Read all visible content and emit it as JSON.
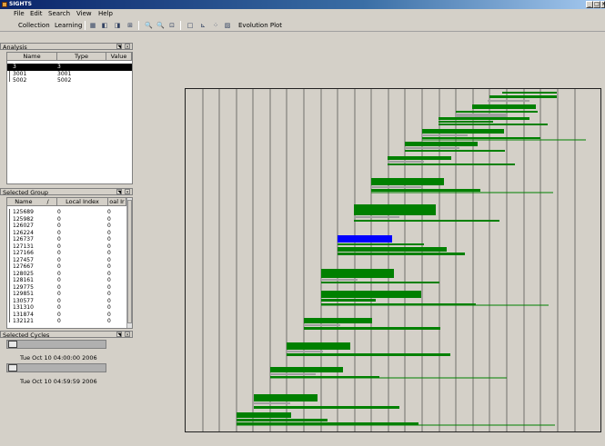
{
  "window": {
    "title": "SIGHTS",
    "minimize": "_",
    "maximize": "□",
    "close": "×"
  },
  "menu": [
    "File",
    "Edit",
    "Search",
    "View",
    "Help"
  ],
  "toolbar": {
    "collection_label": "Collection",
    "learning_label": "Learning",
    "evolution_label": "Evolution Plot",
    "icons": [
      "grid-icon",
      "left-arrow-icon",
      "right-arrow-icon",
      "tree-icon",
      "zoom-in-icon",
      "zoom-out-icon",
      "zoom-fit-icon",
      "blank-page-icon",
      "chart-icon",
      "scatter-icon",
      "evolution-plot-icon"
    ]
  },
  "analysis": {
    "header": "Analysis",
    "columns": [
      "Name",
      "Type",
      "Value"
    ],
    "rows": [
      {
        "name": "3",
        "type": "3",
        "value": "",
        "selected": true
      },
      {
        "name": "3001",
        "type": "3001",
        "value": "",
        "selected": false
      },
      {
        "name": "5002",
        "type": "5002",
        "value": "",
        "selected": false
      }
    ]
  },
  "selected_group": {
    "header": "Selected Group",
    "columns": [
      "Name",
      "/",
      "Local Index",
      "oal Ir"
    ],
    "rows": [
      {
        "name": "125689",
        "local": "0",
        "global": "0"
      },
      {
        "name": "125982",
        "local": "0",
        "global": "0"
      },
      {
        "name": "126027",
        "local": "0",
        "global": "0"
      },
      {
        "name": "126224",
        "local": "0",
        "global": "0"
      },
      {
        "name": "126737",
        "local": "0",
        "global": "0"
      },
      {
        "name": "127131",
        "local": "0",
        "global": "0"
      },
      {
        "name": "127166",
        "local": "0",
        "global": "0"
      },
      {
        "name": "127457",
        "local": "0",
        "global": "0"
      },
      {
        "name": "127667",
        "local": "0",
        "global": "0"
      },
      {
        "name": "128025",
        "local": "0",
        "global": "0"
      },
      {
        "name": "128161",
        "local": "0",
        "global": "0"
      },
      {
        "name": "129775",
        "local": "0",
        "global": "0"
      },
      {
        "name": "129851",
        "local": "0",
        "global": "0"
      },
      {
        "name": "130577",
        "local": "0",
        "global": "0"
      },
      {
        "name": "131310",
        "local": "0",
        "global": "0"
      },
      {
        "name": "131874",
        "local": "0",
        "global": "0"
      },
      {
        "name": "132121",
        "local": "0",
        "global": "0"
      }
    ]
  },
  "selected_cycles": {
    "header": "Selected Cycles",
    "start": "Tue Oct 10 04:00:00 2006",
    "end": "Tue Oct 10 04:59:59 2006"
  },
  "colors": {
    "bar": "#008000",
    "gray_bar": "#a0a0a0",
    "highlight": "#0000ff",
    "plot_bg": "#d4d0c8"
  }
}
